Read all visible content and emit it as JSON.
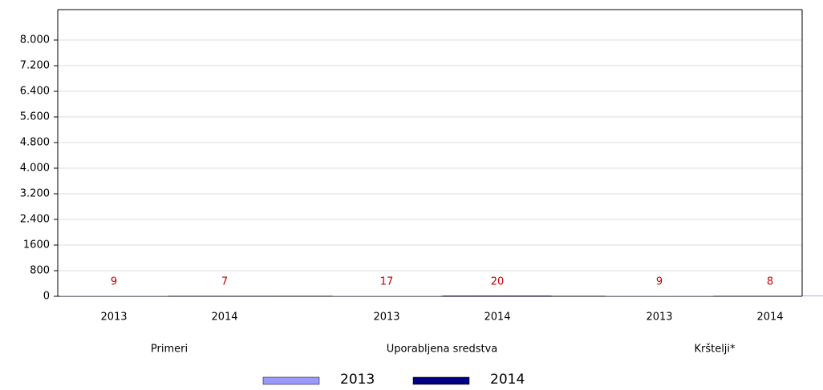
{
  "chart_data": {
    "type": "bar",
    "categories": [
      "Primeri",
      "Uporabljena sredstva",
      "Krštelji*"
    ],
    "series": [
      {
        "name": "2013",
        "color": "#9999ff",
        "values": [
          9,
          17,
          9
        ]
      },
      {
        "name": "2014",
        "color": "#000080",
        "values": [
          7,
          20,
          8
        ]
      }
    ],
    "ylim": [
      0,
      8950
    ],
    "yticks": [
      0,
      800,
      1600,
      {
        "value": 2400,
        "label": "2.400"
      },
      {
        "value": 3200,
        "label": "3.200"
      },
      {
        "value": 4000,
        "label": "4.000"
      },
      {
        "value": 4800,
        "label": "4.800"
      },
      {
        "value": 5600,
        "label": "5.600"
      },
      {
        "value": 6400,
        "label": "6.400"
      },
      {
        "value": 7200,
        "label": "7.200"
      },
      {
        "value": 8000,
        "label": "8.000"
      }
    ],
    "grid": true,
    "value_label_color": "#c00000",
    "legend": "bottom"
  }
}
